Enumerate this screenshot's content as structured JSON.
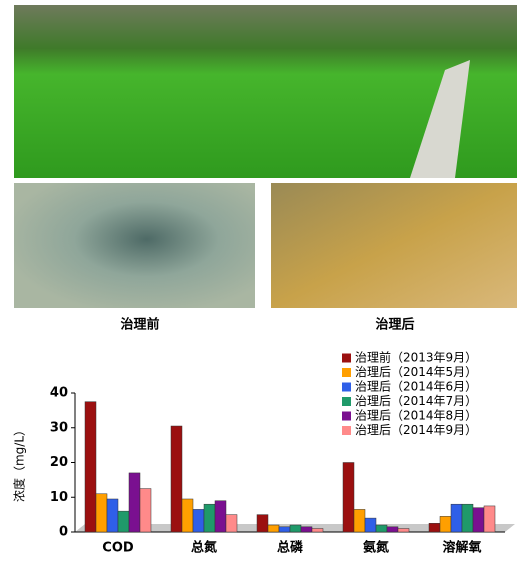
{
  "captions": [
    "治理前",
    "治理后"
  ],
  "chart_data": {
    "type": "bar",
    "y_label": "浓度（mg/L）",
    "categories": [
      "COD",
      "总氮",
      "总磷",
      "氨氮",
      "溶解氧"
    ],
    "series": [
      {
        "name": "治理前（2013年9月）",
        "color": "#9b1010",
        "values": [
          37.5,
          30.5,
          5,
          20,
          2.5
        ]
      },
      {
        "name": "治理后（2014年5月）",
        "color": "#ff9f00",
        "values": [
          11,
          9.5,
          2,
          6.5,
          4.5
        ]
      },
      {
        "name": "治理后（2014年6月）",
        "color": "#2f5fe8",
        "values": [
          9.5,
          6.5,
          1.5,
          4,
          8
        ]
      },
      {
        "name": "治理后（2014年7月）",
        "color": "#1f9a6a",
        "values": [
          6,
          8,
          2,
          2,
          8
        ]
      },
      {
        "name": "治理后（2014年8月）",
        "color": "#7a1090",
        "values": [
          17,
          9,
          1.5,
          1.5,
          7
        ]
      },
      {
        "name": "治理后（2014年9月）",
        "color": "#ff8a8a",
        "values": [
          12.5,
          5,
          1,
          1,
          7.5
        ]
      }
    ],
    "ylim": [
      0,
      40
    ],
    "yticks": [
      0,
      10,
      20,
      30,
      40
    ]
  }
}
